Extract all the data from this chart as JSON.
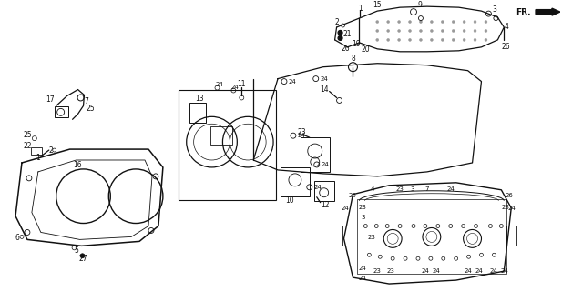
{
  "bg_color": "#ffffff",
  "line_color": "#111111",
  "fig_width": 6.17,
  "fig_height": 3.2,
  "dpi": 100
}
